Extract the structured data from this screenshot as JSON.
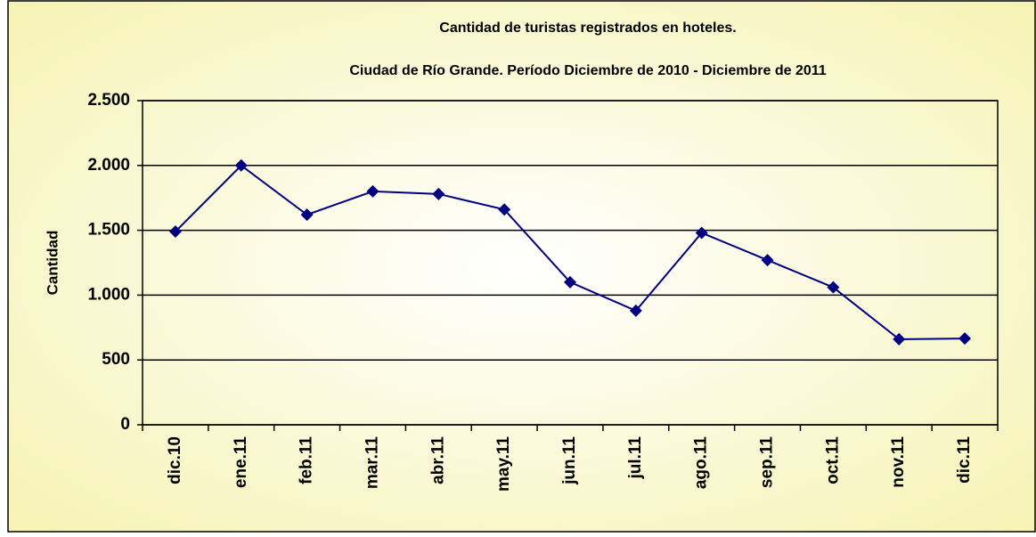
{
  "chart_data": {
    "type": "line",
    "title": "Cantidad de turistas registrados en hoteles.",
    "subtitle": "Ciudad de Río Grande. Período Diciembre de 2010 - Diciembre de 2011",
    "y_label": "Cantidad",
    "categories": [
      "dic.10",
      "ene.11",
      "feb.11",
      "mar.11",
      "abr.11",
      "may.11",
      "jun.11",
      "jul.11",
      "ago.11",
      "sep.11",
      "oct.11",
      "nov.11",
      "dic.11"
    ],
    "series": [
      {
        "name": "Cantidad",
        "color": "#000080",
        "values": [
          1490,
          2000,
          1620,
          1800,
          1780,
          1660,
          1100,
          880,
          1480,
          1270,
          1060,
          660,
          665
        ]
      }
    ],
    "ylim": [
      0,
      2500
    ],
    "yticks": [
      0,
      500,
      {
        "value": 1000,
        "label": "1.000"
      },
      {
        "value": 1500,
        "label": "1.500"
      },
      {
        "value": 2000,
        "label": "2.000"
      },
      {
        "value": 2500,
        "label": "2.500"
      }
    ],
    "grid": true
  }
}
